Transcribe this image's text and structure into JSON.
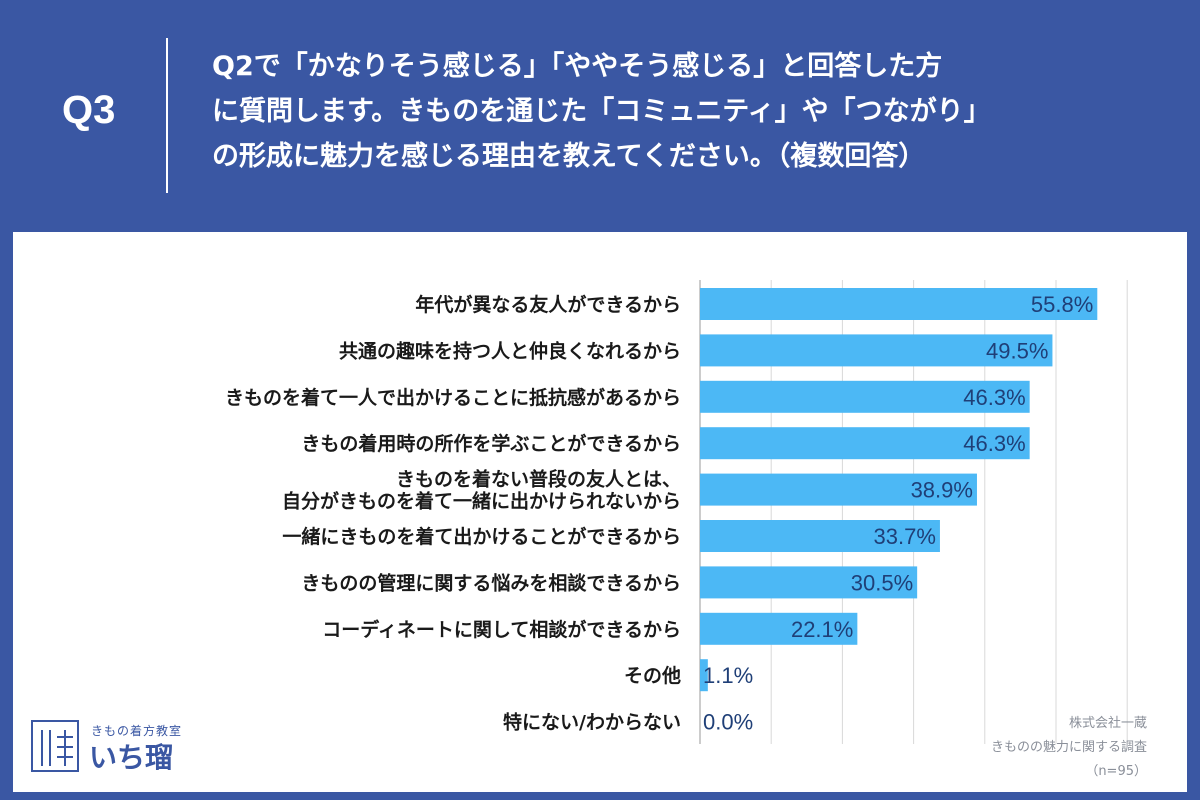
{
  "question": {
    "label": "Q3",
    "lines": [
      "Q2で「かなりそう感じる」「ややそう感じる」と回答した方",
      "に質問します。きものを通じた「コミュニティ」や「つながり」",
      "の形成に魅力を感じる理由を教えてください。（複数回答）"
    ]
  },
  "chart_data": {
    "type": "bar",
    "orientation": "horizontal",
    "categories": [
      "年代が異なる友人ができるから",
      "共通の趣味を持つ人と仲良くなれるから",
      "きものを着て一人で出かけることに抵抗感があるから",
      "きもの着用時の所作を学ぶことができるから",
      "きものを着ない普段の友人とは、\n自分がきものを着て一緒に出かけられないから",
      "一緒にきものを着て出かけることができるから",
      "きものの管理に関する悩みを相談できるから",
      "コーディネートに関して相談ができるから",
      "その他",
      "特にない/わからない"
    ],
    "values": [
      55.8,
      49.5,
      46.3,
      46.3,
      38.9,
      33.7,
      30.5,
      22.1,
      1.1,
      0.0
    ],
    "value_labels": [
      "55.8%",
      "49.5%",
      "46.3%",
      "46.3%",
      "38.9%",
      "33.7%",
      "30.5%",
      "22.1%",
      "1.1%",
      "0.0%"
    ],
    "xlim": [
      0,
      60
    ],
    "grid": true,
    "bar_color": "#4cb8f5",
    "title": "",
    "xlabel": "",
    "ylabel": ""
  },
  "note": {
    "company": "株式会社一蔵",
    "survey": "きものの魅力に関する調査",
    "sample": "（n=95）"
  },
  "logo": {
    "subtitle": "きもの着方教室",
    "name": "いち瑠"
  },
  "colors": {
    "background": "#3a57a3",
    "bar": "#4cb8f5",
    "value_text": "#1f3f77",
    "label_text": "#1a1a1a"
  }
}
